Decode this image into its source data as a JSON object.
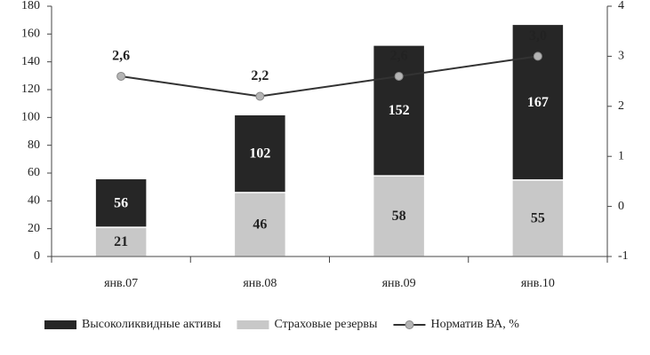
{
  "chart_data": {
    "type": "bar",
    "categories": [
      "янв.07",
      "янв.08",
      "янв.09",
      "янв.10"
    ],
    "series": [
      {
        "name": "Высоколиквидные активы",
        "type": "bar",
        "color": "#262626",
        "values": [
          56,
          102,
          152,
          167
        ]
      },
      {
        "name": "Страховые резервы",
        "type": "bar",
        "color": "#c8c8c8",
        "values": [
          21,
          46,
          58,
          55
        ]
      },
      {
        "name": "Норматив ВА, %",
        "type": "line",
        "axis": "y2",
        "color": "#333333",
        "marker_color": "#b4b4b4",
        "values": [
          2.6,
          2.2,
          2.6,
          3.0
        ],
        "value_labels": [
          "2,6",
          "2,2",
          "2,6",
          "3,0"
        ]
      }
    ],
    "ylim": [
      0,
      180
    ],
    "yticks": [
      0,
      20,
      40,
      60,
      80,
      100,
      120,
      140,
      160,
      180
    ],
    "y2lim": [
      -1,
      4
    ],
    "y2ticks": [
      -1,
      0,
      1,
      2,
      3,
      4
    ],
    "legend": "bottom"
  }
}
